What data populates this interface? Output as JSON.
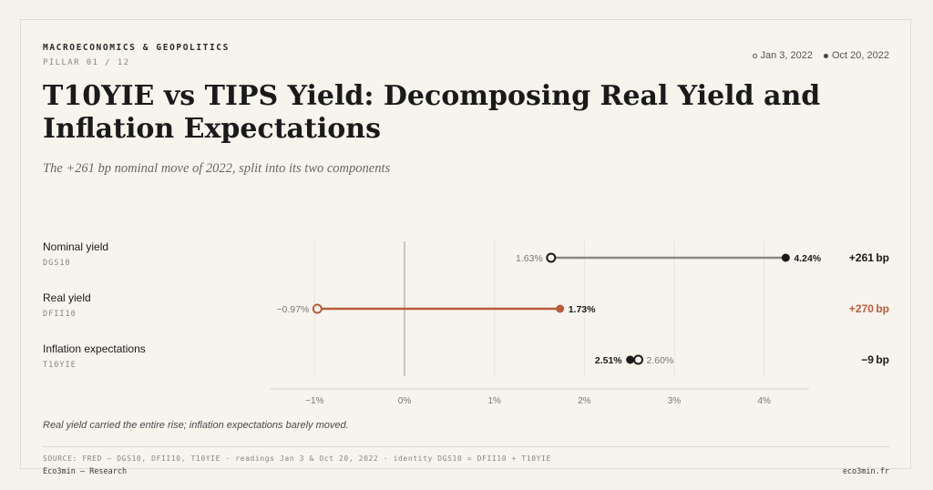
{
  "header": {
    "kicker": "MACROECONOMICS & GEOPOLITICS",
    "pillar": "PILLAR 01 / 12",
    "title": "T10YIE vs TIPS Yield: Decomposing Real Yield and Inflation Expectations",
    "subtitle": "The +261 bp nominal move of 2022, split into its two components",
    "legend": {
      "start_label": "Jan 3, 2022",
      "end_label": "Oct 20, 2022"
    }
  },
  "chart_data": {
    "type": "dumbbell",
    "xlim": [
      -1.5,
      4.5
    ],
    "x_ticks": [
      -1,
      0,
      1,
      2,
      3,
      4
    ],
    "x_tick_labels": [
      "−1%",
      "0%",
      "1%",
      "2%",
      "3%",
      "4%"
    ],
    "rows": [
      {
        "name": "Nominal yield",
        "code": "DGS10",
        "start": 1.63,
        "end": 4.24,
        "start_label": "1.63%",
        "end_label": "4.24%",
        "change_label": "+261 bp",
        "color": "#8c8880",
        "end_color": "#1a1a1a",
        "change_color": "#1a1a1a"
      },
      {
        "name": "Real yield",
        "code": "DFII10",
        "start": -0.97,
        "end": 1.73,
        "start_label": "−0.97%",
        "end_label": "1.73%",
        "change_label": "+270 bp",
        "color": "#b85c3c",
        "end_color": "#b85c3c",
        "change_color": "#b85c3c"
      },
      {
        "name": "Inflation expectations",
        "code": "T10YIE",
        "start": 2.6,
        "end": 2.51,
        "start_label": "2.60%",
        "end_label": "2.51%",
        "change_label": "−9 bp",
        "color": "#8c8880",
        "end_color": "#1a1a1a",
        "change_color": "#1a1a1a"
      }
    ]
  },
  "footer": {
    "note": "Real yield carried the entire rise; inflation expectations barely moved.",
    "source": "SOURCE: FRED — DGS10, DFII10, T10YIE · readings Jan 3 & Oct 20, 2022 · identity DGS10 = DFII10 + T10YIE",
    "brand": "Eco3min — Research",
    "site": "eco3min.fr"
  }
}
